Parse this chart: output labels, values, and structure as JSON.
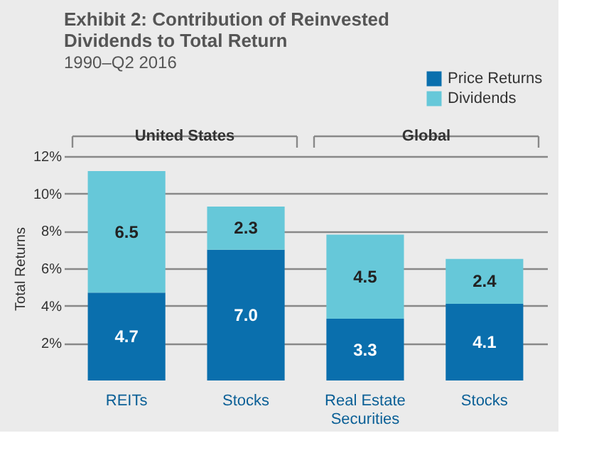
{
  "chart_data": {
    "type": "bar",
    "title": "Exhibit 2: Contribution of Reinvested Dividends to Total Return",
    "subtitle": "1990–Q2 2016",
    "ylabel": "Total Returns",
    "categories": [
      "REITs",
      "Stocks",
      "Real Estate Securities",
      "Stocks"
    ],
    "stacked": true,
    "series": [
      {
        "name": "Price Returns",
        "color": "#0a6fad",
        "values": [
          4.7,
          7.0,
          3.3,
          4.1
        ],
        "value_labels": [
          "4.7",
          "7.0",
          "3.3",
          "4.1"
        ]
      },
      {
        "name": "Dividends",
        "color": "#66c8d9",
        "values": [
          6.5,
          2.3,
          4.5,
          2.4
        ],
        "value_labels": [
          "6.5",
          "2.3",
          "4.5",
          "2.4"
        ]
      }
    ],
    "ylim": [
      0,
      12
    ],
    "yticks": [
      {
        "value": 2,
        "label": "2%"
      },
      {
        "value": 4,
        "label": "4%"
      },
      {
        "value": 6,
        "label": "6%"
      },
      {
        "value": 8,
        "label": "8%"
      },
      {
        "value": 10,
        "label": "10%"
      },
      {
        "value": 12,
        "label": "12%"
      }
    ],
    "annotations": [
      "United States",
      "Global"
    ],
    "data_labels": true,
    "grid": "y",
    "legend": "top right"
  }
}
